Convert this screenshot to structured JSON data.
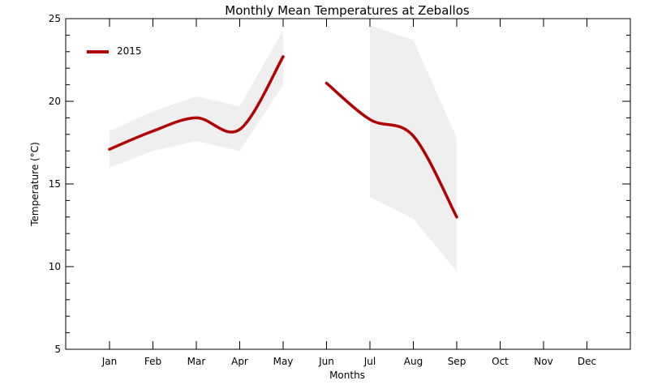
{
  "chart_data": {
    "type": "line",
    "title": "Monthly Mean Temperatures at Zeballos",
    "xlabel": "Months",
    "ylabel": "Temperature (°C)",
    "categories": [
      "Jan",
      "Feb",
      "Mar",
      "Apr",
      "May",
      "Jun",
      "Jul",
      "Aug",
      "Sep",
      "Oct",
      "Nov",
      "Dec"
    ],
    "ylim": [
      5,
      25
    ],
    "yticks": [
      5,
      10,
      15,
      20,
      25
    ],
    "legend_position": "top-left",
    "series": [
      {
        "name": "2015",
        "color": "#b00000",
        "segments": [
          [
            [
              1,
              17.1
            ],
            [
              2,
              18.2
            ],
            [
              3,
              19.0
            ],
            [
              4,
              18.3
            ],
            [
              5,
              22.7
            ]
          ],
          [
            [
              6,
              21.1
            ],
            [
              7,
              18.9
            ],
            [
              8,
              17.9
            ],
            [
              9,
              13.0
            ]
          ]
        ]
      }
    ],
    "ranges": [
      {
        "color": "#efefef",
        "segments": [
          [
            [
              1,
              16.0,
              18.2
            ],
            [
              2,
              17.0,
              19.4
            ],
            [
              3,
              17.6,
              20.3
            ],
            [
              4,
              17.0,
              19.7
            ],
            [
              5,
              21.0,
              24.3
            ]
          ],
          [
            [
              7,
              14.2,
              24.6
            ],
            [
              8,
              12.9,
              23.7
            ],
            [
              9,
              9.7,
              17.8
            ]
          ]
        ]
      }
    ]
  }
}
